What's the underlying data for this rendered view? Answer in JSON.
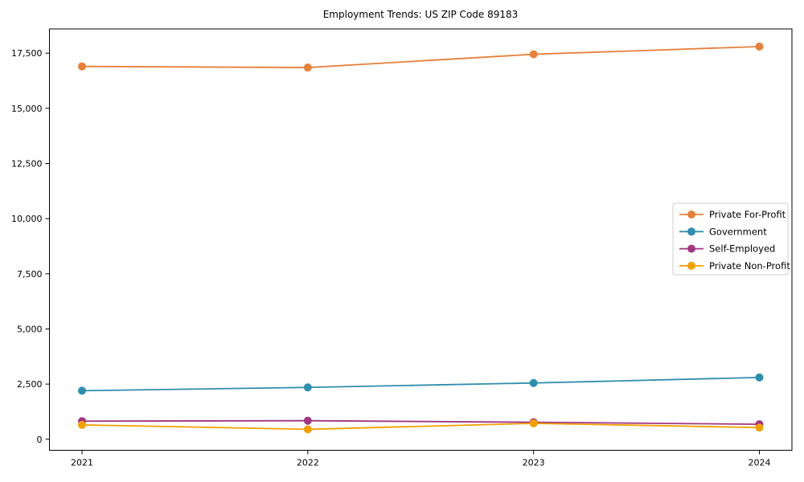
{
  "chart_data": {
    "type": "line",
    "title": "Employment Trends: US ZIP Code 89183",
    "xlabel": "",
    "ylabel": "",
    "categories": [
      "2021",
      "2022",
      "2023",
      "2024"
    ],
    "series": [
      {
        "name": "Private For-Profit",
        "color": "#e5813c",
        "values": [
          16900,
          16850,
          17450,
          17800
        ]
      },
      {
        "name": "Government",
        "color": "#2f8dad",
        "values": [
          2200,
          2350,
          2550,
          2800
        ]
      },
      {
        "name": "Self-Employed",
        "color": "#a23582",
        "values": [
          820,
          840,
          770,
          680
        ]
      },
      {
        "name": "Private Non-Profit",
        "color": "#f2a104",
        "values": [
          650,
          450,
          720,
          530
        ]
      }
    ],
    "y_ticks": [
      0,
      2500,
      5000,
      7500,
      10000,
      12500,
      15000,
      17500
    ],
    "ylim": [
      -500,
      18600
    ],
    "grid": false,
    "legend_position": "center right",
    "marker": "circle",
    "axis_color": "#000000",
    "background_color": "#ffffff",
    "legend_border_color": "#cccccc"
  }
}
